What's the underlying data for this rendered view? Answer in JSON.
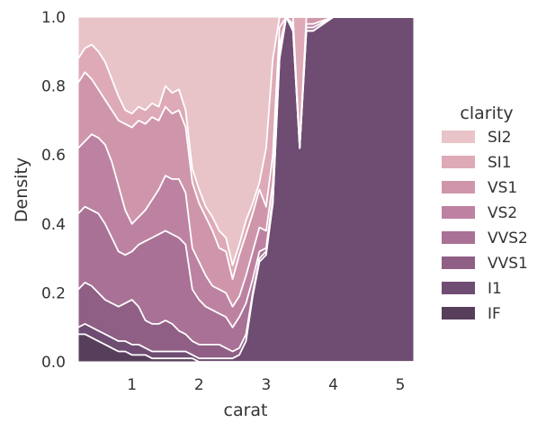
{
  "chart_data": {
    "type": "area",
    "title": "",
    "xlabel": "carat",
    "ylabel": "Density",
    "xlim": [
      0.2,
      5.2
    ],
    "ylim": [
      0,
      1
    ],
    "xticks": [
      "1",
      "2",
      "3",
      "4",
      "5"
    ],
    "xtick_values": [
      1,
      2,
      3,
      4,
      5
    ],
    "yticks": [
      "0.0",
      "0.2",
      "0.4",
      "0.6",
      "0.8",
      "1.0"
    ],
    "ytick_values": [
      0,
      0.2,
      0.4,
      0.6,
      0.8,
      1.0
    ],
    "grid": true,
    "stacked": "fill",
    "legend": {
      "title": "clarity",
      "placement": "right",
      "entries": [
        "SI2",
        "SI1",
        "VS1",
        "VS2",
        "VVS2",
        "VVS1",
        "I1",
        "IF"
      ]
    },
    "x": [
      0.2,
      0.3,
      0.4,
      0.5,
      0.6,
      0.7,
      0.8,
      0.9,
      1.0,
      1.1,
      1.2,
      1.3,
      1.4,
      1.5,
      1.6,
      1.7,
      1.8,
      1.9,
      2.0,
      2.1,
      2.2,
      2.3,
      2.4,
      2.5,
      2.6,
      2.7,
      2.8,
      2.9,
      3.0,
      3.1,
      3.2,
      3.3,
      3.4,
      3.5,
      3.6,
      3.7,
      4.0,
      4.5,
      5.2
    ],
    "series": [
      {
        "name": "SI2",
        "color": "#e8c4c8",
        "boundary": [
          1.0,
          1.0,
          1.0,
          1.0,
          1.0,
          1.0,
          1.0,
          1.0,
          1.0,
          1.0,
          1.0,
          1.0,
          1.0,
          1.0,
          1.0,
          1.0,
          1.0,
          1.0,
          1.0,
          1.0,
          1.0,
          1.0,
          1.0,
          1.0,
          1.0,
          1.0,
          1.0,
          1.0,
          1.0,
          1.0,
          1.0,
          1.0,
          1.0,
          1.0,
          1.0,
          1.0,
          1.0,
          1.0,
          1.0
        ]
      },
      {
        "name": "SI1",
        "color": "#deaab7",
        "boundary": [
          0.88,
          0.91,
          0.92,
          0.9,
          0.87,
          0.82,
          0.77,
          0.73,
          0.72,
          0.74,
          0.73,
          0.75,
          0.74,
          0.8,
          0.78,
          0.79,
          0.73,
          0.56,
          0.5,
          0.45,
          0.42,
          0.38,
          0.36,
          0.28,
          0.34,
          0.41,
          0.46,
          0.52,
          0.62,
          0.88,
          1.0,
          1.0,
          1.0,
          1.0,
          1.0,
          1.0,
          1.0,
          1.0,
          1.0
        ]
      },
      {
        "name": "VS1",
        "color": "#cf96ab",
        "boundary": [
          0.81,
          0.84,
          0.82,
          0.79,
          0.76,
          0.73,
          0.7,
          0.69,
          0.68,
          0.7,
          0.69,
          0.71,
          0.7,
          0.74,
          0.72,
          0.73,
          0.68,
          0.52,
          0.46,
          0.42,
          0.38,
          0.33,
          0.32,
          0.24,
          0.31,
          0.37,
          0.43,
          0.5,
          0.45,
          0.6,
          0.97,
          1.0,
          1.0,
          0.62,
          1.0,
          1.0,
          1.0,
          1.0,
          1.0
        ]
      },
      {
        "name": "VS2",
        "color": "#bd82a1",
        "boundary": [
          0.62,
          0.64,
          0.66,
          0.65,
          0.63,
          0.58,
          0.51,
          0.44,
          0.4,
          0.42,
          0.44,
          0.47,
          0.5,
          0.54,
          0.53,
          0.53,
          0.49,
          0.33,
          0.29,
          0.25,
          0.22,
          0.21,
          0.2,
          0.16,
          0.19,
          0.25,
          0.32,
          0.39,
          0.38,
          0.52,
          0.92,
          1.0,
          0.98,
          0.63,
          0.98,
          0.98,
          1.0,
          1.0,
          1.0
        ]
      },
      {
        "name": "VVS2",
        "color": "#a97195",
        "boundary": [
          0.43,
          0.45,
          0.44,
          0.43,
          0.4,
          0.36,
          0.32,
          0.31,
          0.32,
          0.34,
          0.35,
          0.36,
          0.37,
          0.38,
          0.37,
          0.36,
          0.34,
          0.21,
          0.18,
          0.16,
          0.15,
          0.14,
          0.13,
          0.1,
          0.13,
          0.17,
          0.24,
          0.32,
          0.33,
          0.48,
          0.9,
          1.0,
          0.97,
          0.62,
          0.97,
          0.97,
          1.0,
          1.0,
          1.0
        ]
      },
      {
        "name": "VVS1",
        "color": "#8f5f85",
        "boundary": [
          0.21,
          0.23,
          0.22,
          0.2,
          0.18,
          0.17,
          0.16,
          0.17,
          0.18,
          0.16,
          0.12,
          0.11,
          0.11,
          0.12,
          0.11,
          0.09,
          0.08,
          0.06,
          0.05,
          0.05,
          0.05,
          0.05,
          0.04,
          0.03,
          0.04,
          0.08,
          0.2,
          0.3,
          0.32,
          0.46,
          0.88,
          1.0,
          0.96,
          0.62,
          0.96,
          0.96,
          1.0,
          1.0,
          1.0
        ]
      },
      {
        "name": "I1",
        "color": "#6f4c72",
        "boundary": [
          0.1,
          0.11,
          0.1,
          0.09,
          0.08,
          0.07,
          0.06,
          0.06,
          0.05,
          0.05,
          0.04,
          0.03,
          0.03,
          0.03,
          0.03,
          0.03,
          0.03,
          0.02,
          0.01,
          0.01,
          0.01,
          0.01,
          0.01,
          0.01,
          0.02,
          0.06,
          0.19,
          0.29,
          0.31,
          0.46,
          0.88,
          1.0,
          0.96,
          0.62,
          0.96,
          0.96,
          1.0,
          1.0,
          1.0
        ]
      },
      {
        "name": "IF",
        "color": "#573f5c",
        "boundary": [
          0.08,
          0.08,
          0.07,
          0.06,
          0.05,
          0.04,
          0.03,
          0.03,
          0.02,
          0.02,
          0.02,
          0.01,
          0.01,
          0.01,
          0.01,
          0.01,
          0.01,
          0.01,
          0.0,
          0.0,
          0.0,
          0.0,
          0.0,
          0.0,
          0.0,
          0.0,
          0.0,
          0.0,
          0.0,
          0.0,
          0.0,
          0.0,
          0.0,
          0.0,
          0.0,
          0.0,
          0.0,
          0.0,
          0.0
        ]
      }
    ]
  }
}
